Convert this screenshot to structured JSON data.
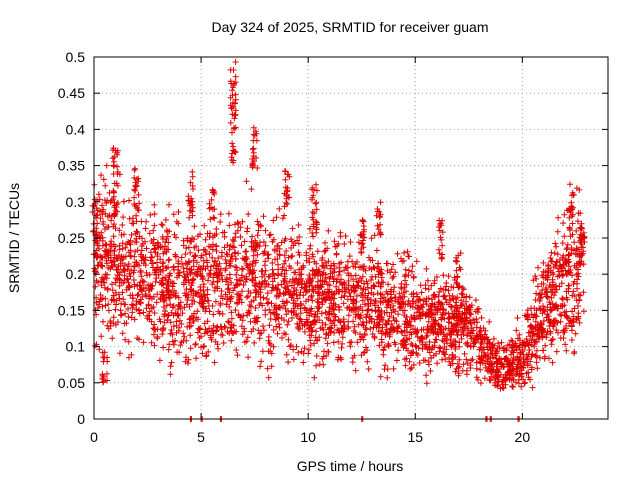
{
  "chart_data": {
    "type": "scatter",
    "title": "Day 324 of 2025, SRMTID for receiver guam",
    "xlabel": "GPS time / hours",
    "ylabel": "SRMTID / TECUs",
    "xlim": [
      0,
      24
    ],
    "ylim": [
      0,
      0.5
    ],
    "x_ticks": [
      0,
      5,
      10,
      15,
      20
    ],
    "x_tick_labels": [
      "0",
      "5",
      "10",
      "15",
      "20"
    ],
    "y_ticks": [
      0,
      0.05,
      0.1,
      0.15,
      0.2,
      0.25,
      0.3,
      0.35,
      0.4,
      0.45,
      0.5
    ],
    "y_tick_labels": [
      "0",
      "0.05",
      "0.1",
      "0.15",
      "0.2",
      "0.25",
      "0.3",
      "0.35",
      "0.4",
      "0.45",
      "0.5"
    ],
    "grid": true,
    "marker": "plus",
    "marker_color": "#e00000",
    "series": [
      {
        "name": "SRMTID",
        "trend": [
          [
            0.0,
            0.22
          ],
          [
            1.0,
            0.21
          ],
          [
            2.0,
            0.2
          ],
          [
            3.0,
            0.19
          ],
          [
            4.0,
            0.18
          ],
          [
            5.0,
            0.175
          ],
          [
            6.0,
            0.18
          ],
          [
            7.0,
            0.2
          ],
          [
            8.0,
            0.18
          ],
          [
            9.0,
            0.18
          ],
          [
            10.0,
            0.17
          ],
          [
            11.0,
            0.17
          ],
          [
            12.0,
            0.16
          ],
          [
            13.0,
            0.16
          ],
          [
            14.0,
            0.15
          ],
          [
            15.0,
            0.14
          ],
          [
            16.0,
            0.13
          ],
          [
            17.0,
            0.13
          ],
          [
            17.5,
            0.13
          ],
          [
            18.0,
            0.1
          ],
          [
            18.5,
            0.08
          ],
          [
            19.0,
            0.07
          ],
          [
            19.5,
            0.075
          ],
          [
            20.0,
            0.09
          ],
          [
            20.5,
            0.12
          ],
          [
            21.0,
            0.15
          ],
          [
            21.5,
            0.17
          ],
          [
            22.0,
            0.19
          ],
          [
            22.5,
            0.2
          ],
          [
            22.9,
            0.2
          ]
        ],
        "bursts": [
          {
            "x": 0.05,
            "y_low": 0.22,
            "y_high": 0.3
          },
          {
            "x": 0.5,
            "y_low": 0.05,
            "y_high": 0.1
          },
          {
            "x": 1.0,
            "y_low": 0.28,
            "y_high": 0.375
          },
          {
            "x": 2.0,
            "y_low": 0.28,
            "y_high": 0.35
          },
          {
            "x": 4.5,
            "y_low": 0.28,
            "y_high": 0.345
          },
          {
            "x": 5.5,
            "y_low": 0.27,
            "y_high": 0.32
          },
          {
            "x": 6.5,
            "y_low": 0.35,
            "y_high": 0.495
          },
          {
            "x": 7.5,
            "y_low": 0.34,
            "y_high": 0.405
          },
          {
            "x": 9.0,
            "y_low": 0.28,
            "y_high": 0.35
          },
          {
            "x": 10.3,
            "y_low": 0.25,
            "y_high": 0.325
          },
          {
            "x": 12.5,
            "y_low": 0.22,
            "y_high": 0.28
          },
          {
            "x": 13.3,
            "y_low": 0.25,
            "y_high": 0.3
          },
          {
            "x": 16.2,
            "y_low": 0.22,
            "y_high": 0.275
          },
          {
            "x": 17.0,
            "y_low": 0.18,
            "y_high": 0.23
          },
          {
            "x": 22.3,
            "y_low": 0.27,
            "y_high": 0.33
          },
          {
            "x": 22.8,
            "y_low": 0.22,
            "y_high": 0.29
          }
        ],
        "zero_points": [
          4.5,
          5.0,
          5.9,
          12.5,
          18.3,
          18.5,
          19.8
        ]
      }
    ]
  }
}
